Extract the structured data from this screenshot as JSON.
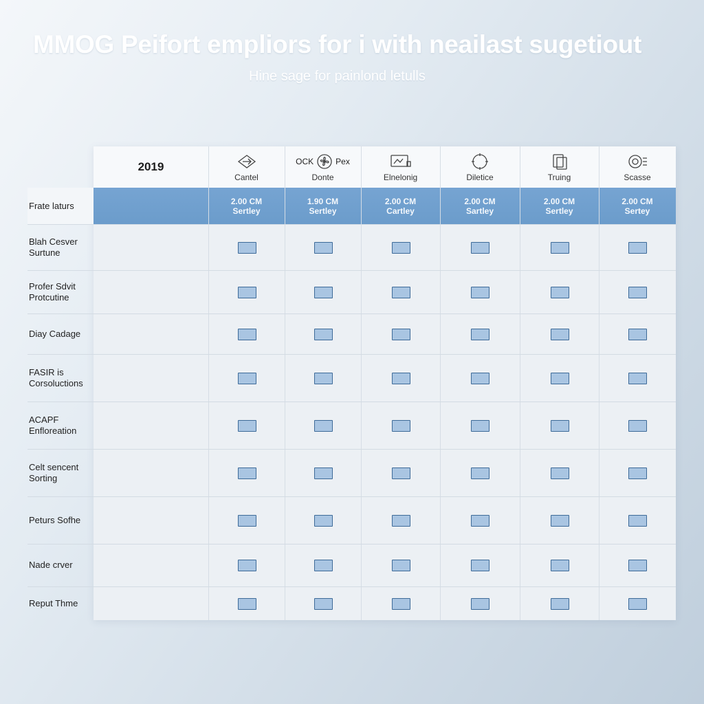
{
  "header": {
    "title": "MMOG Peifort empliors for i with neailast sugetiout",
    "subtitle": "Hine sage for painlond letulls"
  },
  "table": {
    "year": "2019",
    "columns": [
      {
        "label": "Cantel",
        "icon": "diamond-arrow-icon",
        "price_line1": "2.00 CM",
        "price_line2": "Sertley"
      },
      {
        "label": "Donte",
        "icon": "fan-icon",
        "icon_prefix": "OCK",
        "icon_suffix": "Pex",
        "price_line1": "1.90 CM",
        "price_line2": "Sertley"
      },
      {
        "label": "Elnelonig",
        "icon": "screen-icon",
        "price_line1": "2.00 CM",
        "price_line2": "Cartley"
      },
      {
        "label": "Diletice",
        "icon": "circle-arrows-icon",
        "price_line1": "2.00 CM",
        "price_line2": "Sartley"
      },
      {
        "label": "Truing",
        "icon": "documents-icon",
        "price_line1": "2.00 CM",
        "price_line2": "Sertley"
      },
      {
        "label": "Scasse",
        "icon": "gauge-icon",
        "price_line1": "2.00 CM",
        "price_line2": "Sertey"
      }
    ],
    "price_row_label": "Frate laturs",
    "rows": [
      {
        "line1": "Blah Cesver",
        "line2": "Surtune"
      },
      {
        "line1": "Profer Sdvit",
        "line2": "Protcutine"
      },
      {
        "line1": "Diay Cadage",
        "line2": ""
      },
      {
        "line1": "FASIR is",
        "line2": "Corsoluctions"
      },
      {
        "line1": "ACAPF",
        "line2": "Enfloreation"
      },
      {
        "line1": "Celt sencent",
        "line2": "Sorting"
      },
      {
        "line1": "Peturs Sofhe",
        "line2": ""
      },
      {
        "line1": "Nade crver",
        "line2": ""
      },
      {
        "line1": "Reput Thme",
        "line2": ""
      }
    ]
  },
  "colors": {
    "accent_band": "#6b9ccb",
    "checkbox_fill": "#a9c5e2",
    "checkbox_border": "#3d6a98"
  }
}
